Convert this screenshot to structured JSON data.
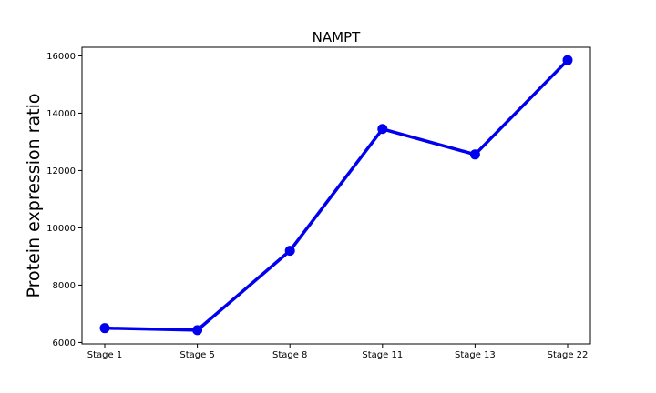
{
  "chart_data": {
    "type": "line",
    "title": "NAMPT",
    "xlabel": "",
    "ylabel": "Protein expression ratio",
    "categories": [
      "Stage 1",
      "Stage 5",
      "Stage 8",
      "Stage 11",
      "Stage 13",
      "Stage 22"
    ],
    "series": [
      {
        "values": [
          6500,
          6430,
          9200,
          13450,
          12560,
          15850
        ],
        "color": "#0000ee"
      }
    ],
    "ylim": [
      5950,
      16300
    ],
    "yticks": [
      "6000",
      "8000",
      "10000",
      "12000",
      "14000",
      "16000"
    ],
    "grid": false,
    "legend": "none"
  }
}
